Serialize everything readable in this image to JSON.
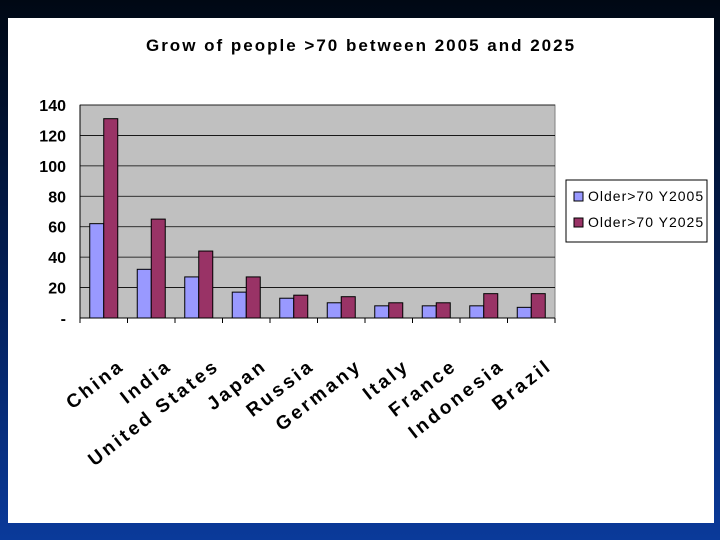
{
  "chart_data": {
    "type": "bar",
    "title": "Grow of people >70 between 2005 and 2025",
    "categories": [
      "China",
      "India",
      "United States",
      "Japan",
      "Russia",
      "Germany",
      "Italy",
      "France",
      "Indonesia",
      "Brazil"
    ],
    "series": [
      {
        "name": "Older>70 Y2005",
        "values": [
          62,
          32,
          27,
          17,
          13,
          10,
          8,
          8,
          8,
          7
        ],
        "color": "#9999ff"
      },
      {
        "name": "Older>70 Y2025",
        "values": [
          131,
          65,
          44,
          27,
          15,
          14,
          10,
          10,
          16,
          16
        ],
        "color": "#993366"
      }
    ],
    "ylim": [
      0,
      140
    ],
    "yticks": [
      "-",
      "20",
      "40",
      "60",
      "80",
      "100",
      "120",
      "140"
    ],
    "grid": true,
    "plot_background": "#c0c0c0",
    "legend_position": "right"
  }
}
